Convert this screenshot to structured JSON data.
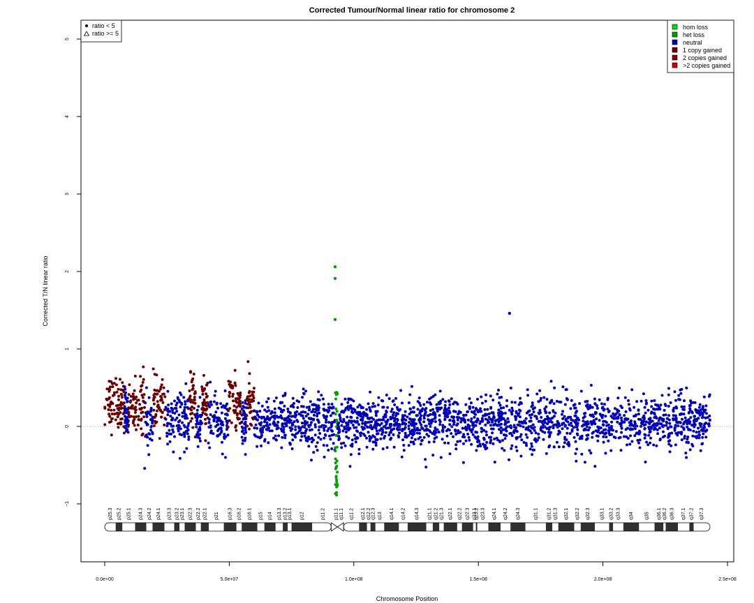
{
  "chart_data": {
    "type": "scatter",
    "title": "Corrected Tumour/Normal linear ratio for chromosome  2",
    "xlabel": "Chromosome Position",
    "ylabel": "Corrected T/N linear ratio",
    "xlim": [
      0,
      250000000
    ],
    "ylim": [
      -1.75,
      5.25
    ],
    "x_ticks": [
      {
        "value": 0,
        "label": "0.0e+00"
      },
      {
        "value": 50000000,
        "label": "5.0e+07"
      },
      {
        "value": 100000000,
        "label": "1.0e+08"
      },
      {
        "value": 150000000,
        "label": "1.5e+08"
      },
      {
        "value": 200000000,
        "label": "2.0e+08"
      },
      {
        "value": 250000000,
        "label": "2.5e+08"
      }
    ],
    "y_ticks": [
      {
        "value": -1,
        "label": "−1"
      },
      {
        "value": 0,
        "label": "0"
      },
      {
        "value": 1,
        "label": "1"
      },
      {
        "value": 2,
        "label": "2"
      },
      {
        "value": 3,
        "label": "3"
      },
      {
        "value": 4,
        "label": "4"
      },
      {
        "value": 5,
        "label": "5"
      }
    ],
    "reference_line": {
      "y": 0,
      "style": "dotted"
    },
    "shape_legend": {
      "placement": "top-left",
      "entries": [
        {
          "label": "ratio < 5",
          "shape": "dot"
        },
        {
          "label": "ratio >= 5",
          "shape": "triangle"
        }
      ]
    },
    "state_legend": {
      "placement": "top-right",
      "entries": [
        {
          "label": "hom loss",
          "color": "#00e000"
        },
        {
          "label": "het loss",
          "color": "#00a000"
        },
        {
          "label": "neutral",
          "color": "#0000b4"
        },
        {
          "label": "1 copy gained",
          "color": "#6a0000"
        },
        {
          "label": "2 copies gained",
          "color": "#8b0000"
        },
        {
          "label": ">2 copies gained",
          "color": "#d00000"
        }
      ]
    },
    "centromere": 93000000,
    "chromosome_end": 243000000,
    "segments": [
      {
        "state": "1 copy gained",
        "start": 0,
        "end": 8000000,
        "mean": 0.3
      },
      {
        "state": "neutral",
        "start": 8000000,
        "end": 9500000,
        "mean": 0.15
      },
      {
        "state": "1 copy gained",
        "start": 9500000,
        "end": 16000000,
        "mean": 0.28
      },
      {
        "state": "neutral",
        "start": 16000000,
        "end": 19500000,
        "mean": 0.05
      },
      {
        "state": "1 copy gained",
        "start": 19500000,
        "end": 24500000,
        "mean": 0.28
      },
      {
        "state": "neutral",
        "start": 24500000,
        "end": 34000000,
        "mean": 0.08
      },
      {
        "state": "1 copy gained",
        "start": 34000000,
        "end": 36500000,
        "mean": 0.3
      },
      {
        "state": "neutral",
        "start": 36500000,
        "end": 39000000,
        "mean": 0.05
      },
      {
        "state": "1 copy gained",
        "start": 39000000,
        "end": 41500000,
        "mean": 0.3
      },
      {
        "state": "neutral",
        "start": 41500000,
        "end": 49500000,
        "mean": 0.05
      },
      {
        "state": "1 copy gained",
        "start": 49500000,
        "end": 55000000,
        "mean": 0.3
      },
      {
        "state": "neutral",
        "start": 55000000,
        "end": 57000000,
        "mean": 0.05
      },
      {
        "state": "1 copy gained",
        "start": 57000000,
        "end": 60000000,
        "mean": 0.3
      },
      {
        "state": "neutral",
        "start": 60000000,
        "end": 92500000,
        "mean": 0.05
      },
      {
        "state": "het loss",
        "start": 92500000,
        "end": 93500000,
        "mean": -0.3
      },
      {
        "state": "neutral",
        "start": 93500000,
        "end": 243000000,
        "mean": 0.05
      }
    ],
    "outliers": [
      {
        "x": 92500000,
        "y": 2.06,
        "state": "het loss"
      },
      {
        "x": 92500000,
        "y": 1.91,
        "state": "het loss"
      },
      {
        "x": 92500000,
        "y": 1.38,
        "state": "het loss"
      },
      {
        "x": 162500000,
        "y": 1.46,
        "state": "neutral"
      }
    ],
    "bands": [
      {
        "name": "p25.3",
        "start": 0,
        "end": 4400000,
        "stain": "gneg"
      },
      {
        "name": "p25.2",
        "start": 4400000,
        "end": 7100000,
        "stain": "gpos"
      },
      {
        "name": "p25.1",
        "start": 7100000,
        "end": 12200000,
        "stain": "gneg"
      },
      {
        "name": "p24.3",
        "start": 12200000,
        "end": 16700000,
        "stain": "gpos"
      },
      {
        "name": "p24.2",
        "start": 16700000,
        "end": 19200000,
        "stain": "gneg"
      },
      {
        "name": "p24.1",
        "start": 19200000,
        "end": 24000000,
        "stain": "gpos"
      },
      {
        "name": "p23.3",
        "start": 24000000,
        "end": 27900000,
        "stain": "gneg"
      },
      {
        "name": "p23.2",
        "start": 27900000,
        "end": 30000000,
        "stain": "gpos"
      },
      {
        "name": "p23.1",
        "start": 30000000,
        "end": 32100000,
        "stain": "gneg"
      },
      {
        "name": "p22.3",
        "start": 32100000,
        "end": 36600000,
        "stain": "gpos"
      },
      {
        "name": "p22.2",
        "start": 36600000,
        "end": 38600000,
        "stain": "gneg"
      },
      {
        "name": "p22.1",
        "start": 38600000,
        "end": 41800000,
        "stain": "gpos"
      },
      {
        "name": "p21",
        "start": 41800000,
        "end": 47800000,
        "stain": "gneg"
      },
      {
        "name": "p16.3",
        "start": 47800000,
        "end": 52900000,
        "stain": "gpos"
      },
      {
        "name": "p16.2",
        "start": 52900000,
        "end": 55000000,
        "stain": "gneg"
      },
      {
        "name": "p16.1",
        "start": 55000000,
        "end": 61300000,
        "stain": "gpos"
      },
      {
        "name": "p15",
        "start": 61300000,
        "end": 64100000,
        "stain": "gneg"
      },
      {
        "name": "p14",
        "start": 64100000,
        "end": 68600000,
        "stain": "gpos"
      },
      {
        "name": "p13.3",
        "start": 68600000,
        "end": 71500000,
        "stain": "gneg"
      },
      {
        "name": "p13.2",
        "start": 71500000,
        "end": 73500000,
        "stain": "gpos"
      },
      {
        "name": "p13.1",
        "start": 73500000,
        "end": 75000000,
        "stain": "gneg"
      },
      {
        "name": "p12",
        "start": 75000000,
        "end": 83300000,
        "stain": "gpos"
      },
      {
        "name": "p11.2",
        "start": 83300000,
        "end": 91800000,
        "stain": "gneg"
      },
      {
        "name": "p11.1",
        "start": 91800000,
        "end": 93900000,
        "stain": "acen"
      },
      {
        "name": "q11.1",
        "start": 93900000,
        "end": 96000000,
        "stain": "acen"
      },
      {
        "name": "q11.2",
        "start": 96000000,
        "end": 102100000,
        "stain": "gneg"
      },
      {
        "name": "q12.1",
        "start": 102100000,
        "end": 105300000,
        "stain": "gpos"
      },
      {
        "name": "q12.2",
        "start": 105300000,
        "end": 106700000,
        "stain": "gneg"
      },
      {
        "name": "q12.3",
        "start": 106700000,
        "end": 108700000,
        "stain": "gpos"
      },
      {
        "name": "q13",
        "start": 108700000,
        "end": 112200000,
        "stain": "gneg"
      },
      {
        "name": "q14.1",
        "start": 112200000,
        "end": 118100000,
        "stain": "gpos"
      },
      {
        "name": "q14.2",
        "start": 118100000,
        "end": 121600000,
        "stain": "gneg"
      },
      {
        "name": "q14.3",
        "start": 121600000,
        "end": 129100000,
        "stain": "gpos"
      },
      {
        "name": "q21.1",
        "start": 129100000,
        "end": 131700000,
        "stain": "gneg"
      },
      {
        "name": "q21.2",
        "start": 131700000,
        "end": 134300000,
        "stain": "gpos"
      },
      {
        "name": "q21.3",
        "start": 134300000,
        "end": 136100000,
        "stain": "gneg"
      },
      {
        "name": "q22.1",
        "start": 136100000,
        "end": 141500000,
        "stain": "gpos"
      },
      {
        "name": "q22.2",
        "start": 141500000,
        "end": 143400000,
        "stain": "gneg"
      },
      {
        "name": "q22.3",
        "start": 143400000,
        "end": 147900000,
        "stain": "gpos"
      },
      {
        "name": "q23.1",
        "start": 147900000,
        "end": 149000000,
        "stain": "gneg"
      },
      {
        "name": "q23.2",
        "start": 149000000,
        "end": 149600000,
        "stain": "gpos"
      },
      {
        "name": "q23.3",
        "start": 149600000,
        "end": 154000000,
        "stain": "gneg"
      },
      {
        "name": "q24.1",
        "start": 154000000,
        "end": 158900000,
        "stain": "gpos"
      },
      {
        "name": "q24.2",
        "start": 158900000,
        "end": 162900000,
        "stain": "gneg"
      },
      {
        "name": "q24.3",
        "start": 162900000,
        "end": 168900000,
        "stain": "gpos"
      },
      {
        "name": "q31.1",
        "start": 168900000,
        "end": 177100000,
        "stain": "gneg"
      },
      {
        "name": "q31.2",
        "start": 177100000,
        "end": 179700000,
        "stain": "gpos"
      },
      {
        "name": "q31.3",
        "start": 179700000,
        "end": 182100000,
        "stain": "gneg"
      },
      {
        "name": "q32.1",
        "start": 182100000,
        "end": 188500000,
        "stain": "gpos"
      },
      {
        "name": "q32.2",
        "start": 188500000,
        "end": 191100000,
        "stain": "gneg"
      },
      {
        "name": "q32.3",
        "start": 191100000,
        "end": 196800000,
        "stain": "gpos"
      },
      {
        "name": "q33.1",
        "start": 196800000,
        "end": 202500000,
        "stain": "gneg"
      },
      {
        "name": "q33.2",
        "start": 202500000,
        "end": 204100000,
        "stain": "gpos"
      },
      {
        "name": "q33.3",
        "start": 204100000,
        "end": 208200000,
        "stain": "gneg"
      },
      {
        "name": "q34",
        "start": 208200000,
        "end": 214500000,
        "stain": "gpos"
      },
      {
        "name": "q35",
        "start": 214500000,
        "end": 220700000,
        "stain": "gneg"
      },
      {
        "name": "q36.1",
        "start": 220700000,
        "end": 224300000,
        "stain": "gpos"
      },
      {
        "name": "q36.2",
        "start": 224300000,
        "end": 225200000,
        "stain": "gneg"
      },
      {
        "name": "q36.3",
        "start": 225200000,
        "end": 230100000,
        "stain": "gpos"
      },
      {
        "name": "q37.1",
        "start": 230100000,
        "end": 234700000,
        "stain": "gneg"
      },
      {
        "name": "q37.2",
        "start": 234700000,
        "end": 236400000,
        "stain": "gpos"
      },
      {
        "name": "q37.3",
        "start": 236400000,
        "end": 243000000,
        "stain": "gneg"
      }
    ]
  }
}
